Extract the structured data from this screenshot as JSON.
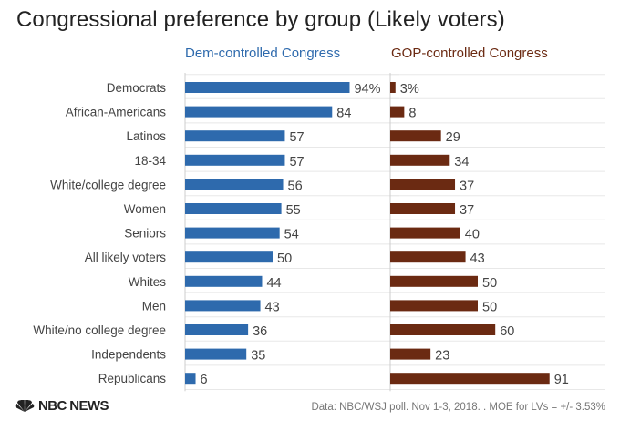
{
  "chart_data": {
    "type": "bar",
    "title": "Congressional preference by group (Likely voters)",
    "categories": [
      "Democrats",
      "African-Americans",
      "Latinos",
      "18-34",
      "White/college degree",
      "Women",
      "Seniors",
      "All likely voters",
      "Whites",
      "Men",
      "White/no college degree",
      "Independents",
      "Republicans"
    ],
    "series": [
      {
        "name": "Dem-controlled Congress",
        "color": "#2e6aad",
        "values": [
          94,
          84,
          57,
          57,
          56,
          55,
          54,
          50,
          44,
          43,
          36,
          35,
          6
        ],
        "labels": [
          "94%",
          "84",
          "57",
          "57",
          "56",
          "55",
          "54",
          "50",
          "44",
          "43",
          "36",
          "35",
          "6"
        ]
      },
      {
        "name": "GOP-controlled Congress",
        "color": "#6b2a12",
        "values": [
          3,
          8,
          29,
          34,
          37,
          37,
          40,
          43,
          50,
          50,
          60,
          23,
          91
        ],
        "labels": [
          "3%",
          "8",
          "29",
          "34",
          "37",
          "37",
          "40",
          "43",
          "50",
          "50",
          "60",
          "23",
          "91"
        ]
      }
    ],
    "xlim": [
      0,
      100
    ],
    "grid": true,
    "legend": "top"
  },
  "footer": {
    "logo_text": "NBC NEWS",
    "logo_icon": "peacock-icon",
    "source": "Data: NBC/WSJ poll. Nov 1-3, 2018. . MOE for LVs = +/- 3.53%"
  }
}
